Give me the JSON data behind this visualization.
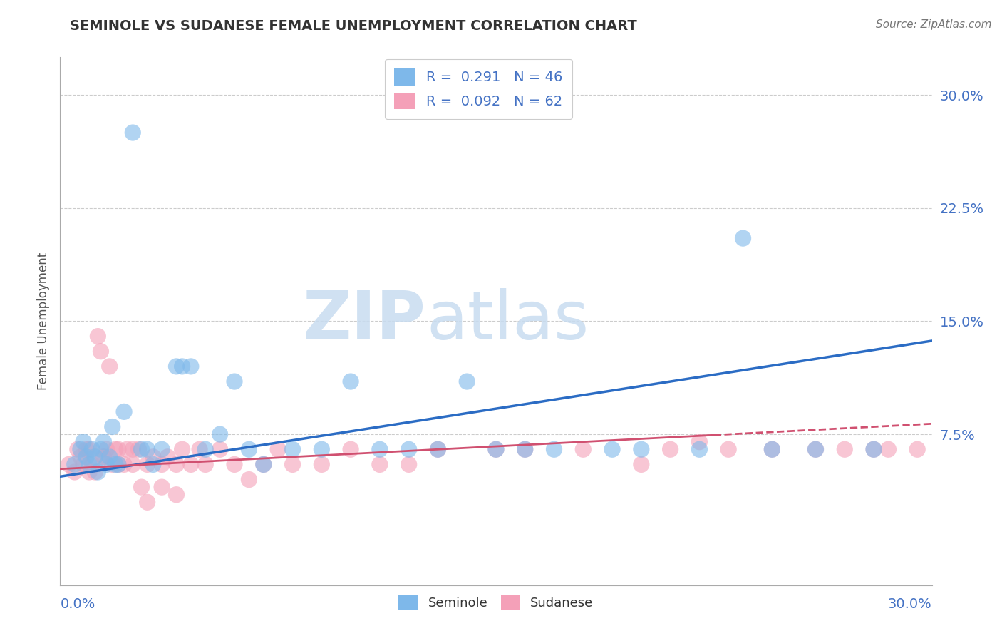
{
  "title": "SEMINOLE VS SUDANESE FEMALE UNEMPLOYMENT CORRELATION CHART",
  "source": "Source: ZipAtlas.com",
  "ylabel": "Female Unemployment",
  "xlim": [
    0.0,
    0.3
  ],
  "ylim": [
    -0.025,
    0.325
  ],
  "seminole_R": 0.291,
  "seminole_N": 46,
  "sudanese_R": 0.092,
  "sudanese_N": 62,
  "seminole_color": "#7EB8EA",
  "sudanese_color": "#F4A0B8",
  "seminole_line_color": "#2B6CC4",
  "sudanese_line_color": "#D05070",
  "grid_color": "#CCCCCC",
  "label_color": "#4472C4",
  "title_color": "#333333",
  "source_color": "#777777",
  "watermark_color": "#C8DCF0",
  "seminole_x": [
    0.005,
    0.007,
    0.008,
    0.009,
    0.01,
    0.011,
    0.012,
    0.013,
    0.014,
    0.015,
    0.016,
    0.017,
    0.018,
    0.019,
    0.02,
    0.022,
    0.025,
    0.028,
    0.03,
    0.032,
    0.035,
    0.04,
    0.042,
    0.045,
    0.05,
    0.055,
    0.06,
    0.065,
    0.07,
    0.08,
    0.09,
    0.1,
    0.11,
    0.12,
    0.13,
    0.14,
    0.15,
    0.16,
    0.17,
    0.19,
    0.2,
    0.22,
    0.235,
    0.245,
    0.26,
    0.28
  ],
  "seminole_y": [
    0.055,
    0.065,
    0.07,
    0.06,
    0.055,
    0.065,
    0.06,
    0.05,
    0.065,
    0.07,
    0.055,
    0.06,
    0.08,
    0.055,
    0.055,
    0.09,
    0.275,
    0.065,
    0.065,
    0.055,
    0.065,
    0.12,
    0.12,
    0.12,
    0.065,
    0.075,
    0.11,
    0.065,
    0.055,
    0.065,
    0.065,
    0.11,
    0.065,
    0.065,
    0.065,
    0.11,
    0.065,
    0.065,
    0.065,
    0.065,
    0.065,
    0.065,
    0.205,
    0.065,
    0.065,
    0.065
  ],
  "sudanese_x": [
    0.003,
    0.005,
    0.006,
    0.007,
    0.008,
    0.009,
    0.01,
    0.011,
    0.012,
    0.013,
    0.014,
    0.015,
    0.016,
    0.017,
    0.018,
    0.019,
    0.02,
    0.022,
    0.023,
    0.025,
    0.027,
    0.028,
    0.03,
    0.032,
    0.035,
    0.037,
    0.04,
    0.042,
    0.045,
    0.048,
    0.05,
    0.055,
    0.06,
    0.065,
    0.07,
    0.075,
    0.08,
    0.09,
    0.1,
    0.11,
    0.12,
    0.13,
    0.15,
    0.16,
    0.18,
    0.2,
    0.21,
    0.22,
    0.23,
    0.245,
    0.26,
    0.27,
    0.28,
    0.285,
    0.295,
    0.01,
    0.015,
    0.02,
    0.025,
    0.03,
    0.035,
    0.04
  ],
  "sudanese_y": [
    0.055,
    0.05,
    0.065,
    0.06,
    0.055,
    0.065,
    0.05,
    0.055,
    0.05,
    0.14,
    0.13,
    0.06,
    0.065,
    0.12,
    0.055,
    0.065,
    0.055,
    0.055,
    0.065,
    0.055,
    0.065,
    0.04,
    0.055,
    0.06,
    0.055,
    0.06,
    0.055,
    0.065,
    0.055,
    0.065,
    0.055,
    0.065,
    0.055,
    0.045,
    0.055,
    0.065,
    0.055,
    0.055,
    0.065,
    0.055,
    0.055,
    0.065,
    0.065,
    0.065,
    0.065,
    0.055,
    0.065,
    0.07,
    0.065,
    0.065,
    0.065,
    0.065,
    0.065,
    0.065,
    0.065,
    0.065,
    0.06,
    0.065,
    0.065,
    0.03,
    0.04,
    0.035
  ],
  "seminole_line_x": [
    0.0,
    0.3
  ],
  "seminole_line_y": [
    0.047,
    0.137
  ],
  "sudanese_line_x": [
    0.0,
    0.3
  ],
  "sudanese_line_y": [
    0.052,
    0.082
  ]
}
